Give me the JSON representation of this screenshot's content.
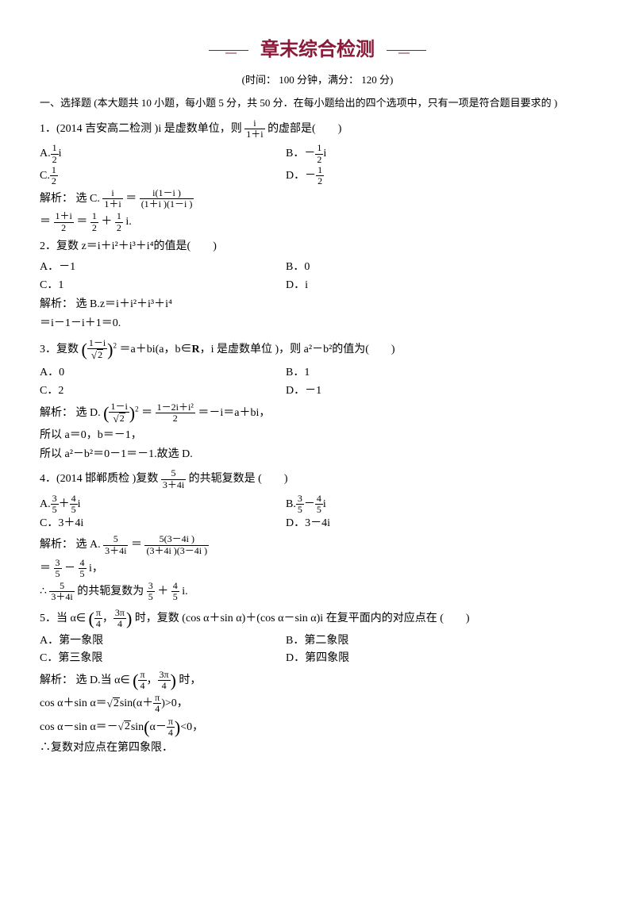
{
  "title": "章末综合检测",
  "subtitle": "(时间： 100 分钟，满分： 120 分)",
  "section1_intro": "一、选择题 (本大题共 10 小题，每小题 5 分，共 50 分．在每小题给出的四个选项中，只有一项是符合题目要求的 )",
  "q1": {
    "text_a": "1．(2014 吉安高二检测 )i 是虚数单位，则 ",
    "text_b": "的虚部是(　　)",
    "frac_num": "i",
    "frac_den": "1＋i",
    "optA": "A.",
    "optB": "B．－",
    "optC": "C.",
    "optD": "D．－",
    "sol_a": "解析： 选 C.",
    "sol_b": "＝",
    "sol_c": "＝",
    "sol_d": "＝",
    "sol_e": "＋",
    "sol_f": "i."
  },
  "q2": {
    "text": "2．复数 z＝i＋i²＋i³＋i⁴的值是(　　)",
    "A": "A．－1",
    "B": "B．0",
    "C": "C．1",
    "D": "D．i",
    "sol_a": "解析： 选 B.z＝i＋i²＋i³＋i⁴",
    "sol_b": "＝i－1－i＋1＝0."
  },
  "q3": {
    "text_a": "3．复数 ",
    "text_b": "＝a＋bi(a，b∈",
    "text_c": "，i 是虚数单位 )，则 a²－b²的值为(　　)",
    "R": "R",
    "A": "A．0",
    "B": "B．1",
    "C": "C．2",
    "D": "D．－1",
    "sol_a": "解析： 选 D.",
    "sol_b": "＝",
    "sol_c": "＝－i＝a＋bi，",
    "sol_d": "所以 a＝0，b＝－1，",
    "sol_e": "所以 a²－b²＝0－1＝－1.故选 D."
  },
  "q4": {
    "text_a": "4．(2014 邯郸质检 )复数",
    "text_b": "的共轭复数是 (　　)",
    "A_pre": "A.",
    "B_pre": "B.",
    "C": "C．3＋4i",
    "D": "D．3－4i",
    "sol_a": "解析： 选 A.",
    "sol_b": "＝",
    "sol_c": "＝",
    "sol_d": "－",
    "sol_e": "i，",
    "sol_f": "∴",
    "sol_g": "的共轭复数为 ",
    "sol_h": "＋",
    "sol_i": "i."
  },
  "q5": {
    "text_a": "5．当 α∈",
    "text_b": "时，复数 (cos α＋sin α)＋(cos α－sin α)i 在复平面内的对应点在 (　　)",
    "A": "A．第一象限",
    "B": "B．第二象限",
    "C": "C．第三象限",
    "D": "D．第四象限",
    "sol_a": "解析： 选 D.当 α∈",
    "sol_b": "时，",
    "sol_c": "cos α＋sin α＝",
    "sol_d": "sin(α＋",
    "sol_e": ")>0，",
    "sol_f": "cos α－sin α＝－",
    "sol_g": "sin",
    "sol_h": "<0，",
    "sol_i": "∴复数对应点在第四象限．"
  }
}
